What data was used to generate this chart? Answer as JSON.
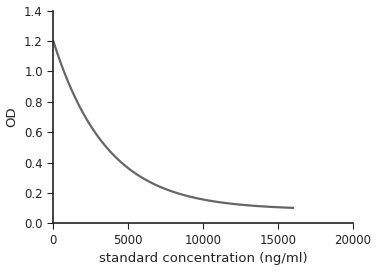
{
  "xlabel": "standard concentration (ng/ml)",
  "ylabel": "OD",
  "xlim": [
    0,
    20000
  ],
  "ylim": [
    0,
    1.4
  ],
  "xticks": [
    0,
    5000,
    10000,
    15000,
    20000
  ],
  "yticks": [
    0,
    0.2,
    0.4,
    0.6,
    0.8,
    1.0,
    1.2,
    1.4
  ],
  "line_color": "#666666",
  "line_width": 1.6,
  "curve_x_start": 0,
  "curve_x_end": 16000,
  "a": 1.2,
  "b": 0.09,
  "k": 0.00028,
  "background_color": "#ffffff",
  "axes_color": "#222222",
  "tick_label_fontsize": 8.5,
  "xlabel_fontsize": 9.5,
  "ylabel_fontsize": 9.5,
  "spine_linewidth": 1.2,
  "figsize": [
    3.77,
    2.71
  ],
  "dpi": 100
}
